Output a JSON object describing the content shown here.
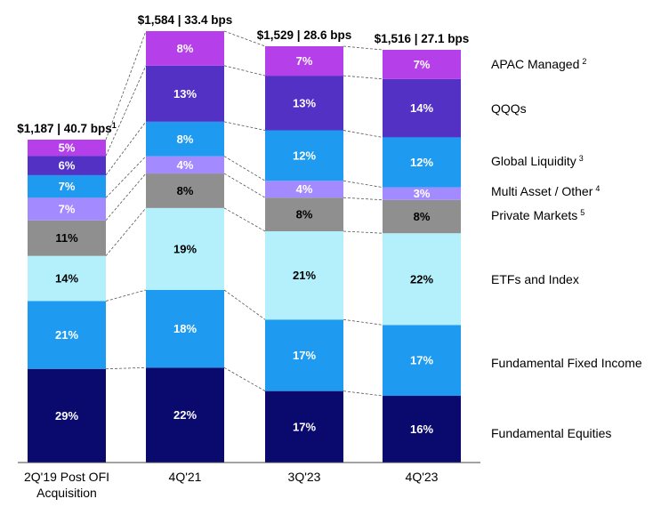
{
  "chart_data": {
    "type": "bar",
    "stacked": true,
    "normalized": true,
    "categories": [
      "2Q'19 Post OFI Acquisition",
      "4Q'21",
      "3Q'23",
      "4Q'23"
    ],
    "category_lines": [
      [
        "2Q'19 Post OFI",
        "Acquisition"
      ],
      [
        "4Q'21"
      ],
      [
        "3Q'23"
      ],
      [
        "4Q'23"
      ]
    ],
    "totals": [
      {
        "aum": "$1,187",
        "bps": "40.7 bps",
        "note": "1"
      },
      {
        "aum": "$1,584",
        "bps": "33.4 bps",
        "note": ""
      },
      {
        "aum": "$1,529",
        "bps": "28.6 bps",
        "note": ""
      },
      {
        "aum": "$1,516",
        "bps": "27.1 bps",
        "note": ""
      }
    ],
    "series": [
      {
        "name": "Fundamental Equities",
        "note": "",
        "color": "#0a0a6e",
        "text_color": "#ffffff",
        "values": [
          29,
          22,
          17,
          16
        ]
      },
      {
        "name": "Fundamental Fixed Income",
        "note": "",
        "color": "#1e9bf0",
        "text_color": "#ffffff",
        "values": [
          21,
          18,
          17,
          17
        ]
      },
      {
        "name": "ETFs and Index",
        "note": "",
        "color": "#b3f0fb",
        "text_color": "#000000",
        "values": [
          14,
          19,
          21,
          22
        ]
      },
      {
        "name": "Private Markets",
        "note": "5",
        "color": "#8f8f8f",
        "text_color": "#000000",
        "values": [
          11,
          8,
          8,
          8
        ]
      },
      {
        "name": "Multi Asset / Other",
        "note": "4",
        "color": "#a38bff",
        "text_color": "#ffffff",
        "values": [
          7,
          4,
          4,
          3
        ]
      },
      {
        "name": "Global Liquidity",
        "note": "3",
        "color": "#1e9bf0",
        "text_color": "#ffffff",
        "values": [
          7,
          8,
          12,
          12
        ]
      },
      {
        "name": "QQQs",
        "note": "",
        "color": "#5231c4",
        "text_color": "#ffffff",
        "values": [
          6,
          13,
          13,
          14
        ]
      },
      {
        "name": "APAC Managed",
        "note": "2",
        "color": "#b540ea",
        "text_color": "#ffffff",
        "values": [
          5,
          8,
          7,
          7
        ]
      }
    ],
    "legend_placement": "right",
    "grid": false
  }
}
